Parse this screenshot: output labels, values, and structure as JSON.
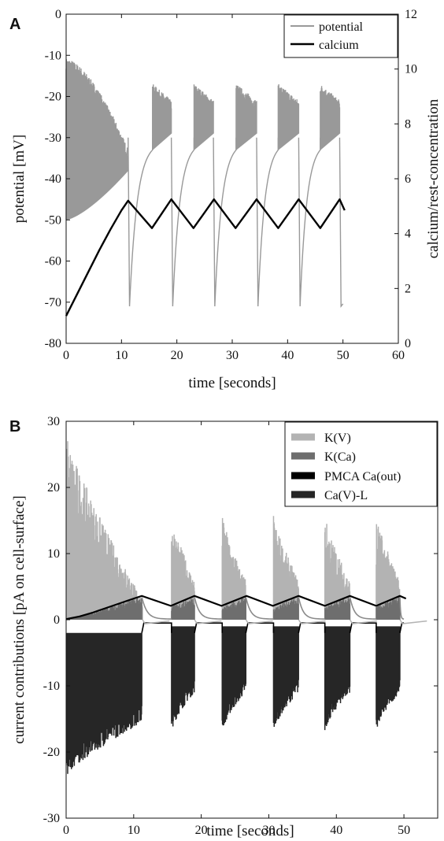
{
  "chart_data": [
    {
      "panel_label": "A",
      "type": "line",
      "xlabel": "time [seconds]",
      "ylabel": "potential [mV]",
      "y2label": "calcium/rest-concentration",
      "xlim": [
        0,
        60
      ],
      "ylim": [
        -80,
        0
      ],
      "y2lim": [
        0,
        12
      ],
      "xticks": [
        0,
        10,
        20,
        30,
        40,
        50,
        60
      ],
      "yticks": [
        0,
        -10,
        -20,
        -30,
        -40,
        -50,
        -60,
        -70,
        -80
      ],
      "y2ticks": [
        12,
        10,
        8,
        6,
        4,
        2,
        0
      ],
      "grid": false,
      "legend_position": "top-right",
      "series": [
        {
          "name": "potential",
          "color": "#999999",
          "axis": "left",
          "description_points": {
            "initial_burst": {
              "start": 0.0,
              "end": 11.2,
              "upper_start": -12,
              "upper_end": -34,
              "lower_start": -50,
              "lower_end": -38
            },
            "burst_starts": [
              15.6,
              19.4,
              23.1,
              26.9,
              30.7,
              34.6,
              38.3,
              42.2,
              45.9
            ],
            "bursts": [
              [
                15.6,
                19.0
              ],
              [
                23.1,
                26.6
              ],
              [
                30.7,
                34.4
              ],
              [
                38.3,
                42.0
              ],
              [
                45.9,
                49.4
              ]
            ],
            "burst_upper": [
              -18,
              -22
            ],
            "burst_lower": [
              -33,
              -29
            ],
            "interburst_trough": -71
          }
        },
        {
          "name": "calcium",
          "color": "#000000",
          "axis": "right",
          "x": [
            0,
            2,
            4,
            6,
            8,
            10,
            11.2,
            15.5,
            19.0,
            23.0,
            26.7,
            30.6,
            34.4,
            38.3,
            42.0,
            45.9,
            49.4,
            50.3
          ],
          "y": [
            1.0,
            1.8,
            2.6,
            3.4,
            4.15,
            4.85,
            5.2,
            4.2,
            5.25,
            4.2,
            5.25,
            4.2,
            5.25,
            4.2,
            5.25,
            4.2,
            5.25,
            4.85
          ]
        }
      ]
    },
    {
      "panel_label": "B",
      "type": "line",
      "xlabel": "time [seconds]",
      "ylabel": "current contributions [pA on cell-surface]",
      "xlim": [
        0,
        55
      ],
      "ylim": [
        -30,
        30
      ],
      "xticks": [
        0,
        10,
        20,
        30,
        40,
        50
      ],
      "yticks": [
        30,
        20,
        10,
        0,
        -10,
        -20,
        -30
      ],
      "grid": false,
      "legend_position": "top-right",
      "series": [
        {
          "name": "K(V)",
          "color": "#b3b3b3",
          "description_points": {
            "initial_burst": {
              "start": 0.0,
              "end": 11.3,
              "peak_start": 28,
              "peak_end": 3
            },
            "bursts": [
              [
                15.6,
                19.0
              ],
              [
                23.1,
                26.6
              ],
              [
                30.7,
                34.4
              ],
              [
                38.3,
                42.0
              ],
              [
                45.9,
                49.4
              ]
            ],
            "burst_peak": [
              16,
              6
            ],
            "interburst": 0
          }
        },
        {
          "name": "K(Ca)",
          "color": "#6e6e6e",
          "description_points": {
            "initial_rise": [
              [
                0,
                0
              ],
              [
                11.2,
                3.6
              ]
            ],
            "burst_range": [
              0,
              3.6
            ],
            "interburst_start": 0.6
          }
        },
        {
          "name": "PMCA Ca(out)",
          "color": "#000000",
          "x": [
            0,
            2,
            4,
            6,
            8,
            10,
            11.2,
            15.5,
            19.0,
            23.0,
            26.7,
            30.6,
            34.4,
            38.3,
            42.0,
            45.9,
            49.4,
            50.3
          ],
          "y": [
            0.1,
            0.5,
            1.1,
            1.8,
            2.5,
            3.2,
            3.6,
            2.1,
            3.6,
            2.1,
            3.6,
            2.1,
            3.6,
            2.1,
            3.6,
            2.1,
            3.6,
            3.2
          ]
        },
        {
          "name": "Ca(V)-L",
          "color": "#262626",
          "description_points": {
            "initial_burst": {
              "start": 0.0,
              "end": 11.2,
              "low_start": -22,
              "low_end": -14,
              "high": -2
            },
            "bursts": [
              [
                15.6,
                19.0
              ],
              [
                23.1,
                26.6
              ],
              [
                30.7,
                34.4
              ],
              [
                38.3,
                42.0
              ],
              [
                45.9,
                49.4
              ]
            ],
            "burst_low": [
              -16,
              -10
            ],
            "burst_high": -1,
            "interburst": -0.5
          }
        }
      ]
    }
  ]
}
